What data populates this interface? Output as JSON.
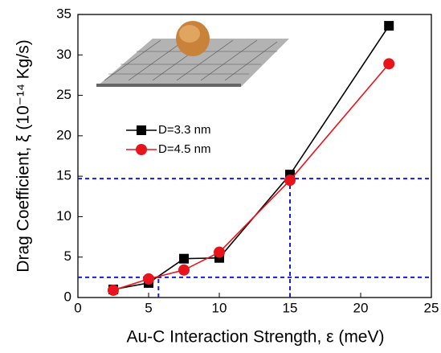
{
  "chart_data": {
    "type": "line",
    "xlabel": "Au-C Interaction Strength, ε (meV)",
    "ylabel": "Drag Coefficient, ξ (10⁻¹⁴ Kg/s)",
    "x": [
      2.5,
      5,
      7.5,
      10,
      15,
      22
    ],
    "series": [
      {
        "name": "D=3.3 nm",
        "color": "#000000",
        "marker": "square",
        "values": [
          1.0,
          1.8,
          4.8,
          4.9,
          15.2,
          33.6
        ]
      },
      {
        "name": "D=4.5 nm",
        "color": "#e8141c",
        "marker": "circle",
        "values": [
          0.9,
          2.3,
          3.4,
          5.6,
          14.5,
          28.9
        ]
      }
    ],
    "guides": [
      {
        "x": 5.7,
        "y": 2.5
      },
      {
        "x": 15,
        "y": 14.7
      }
    ],
    "guide_color": "#1a1adc",
    "xlim": [
      0,
      25
    ],
    "xticks": [
      0,
      5,
      10,
      15,
      20,
      25
    ],
    "ylim": [
      0,
      35
    ],
    "yticks": [
      0,
      5,
      10,
      15,
      20,
      25,
      30,
      35
    ]
  }
}
